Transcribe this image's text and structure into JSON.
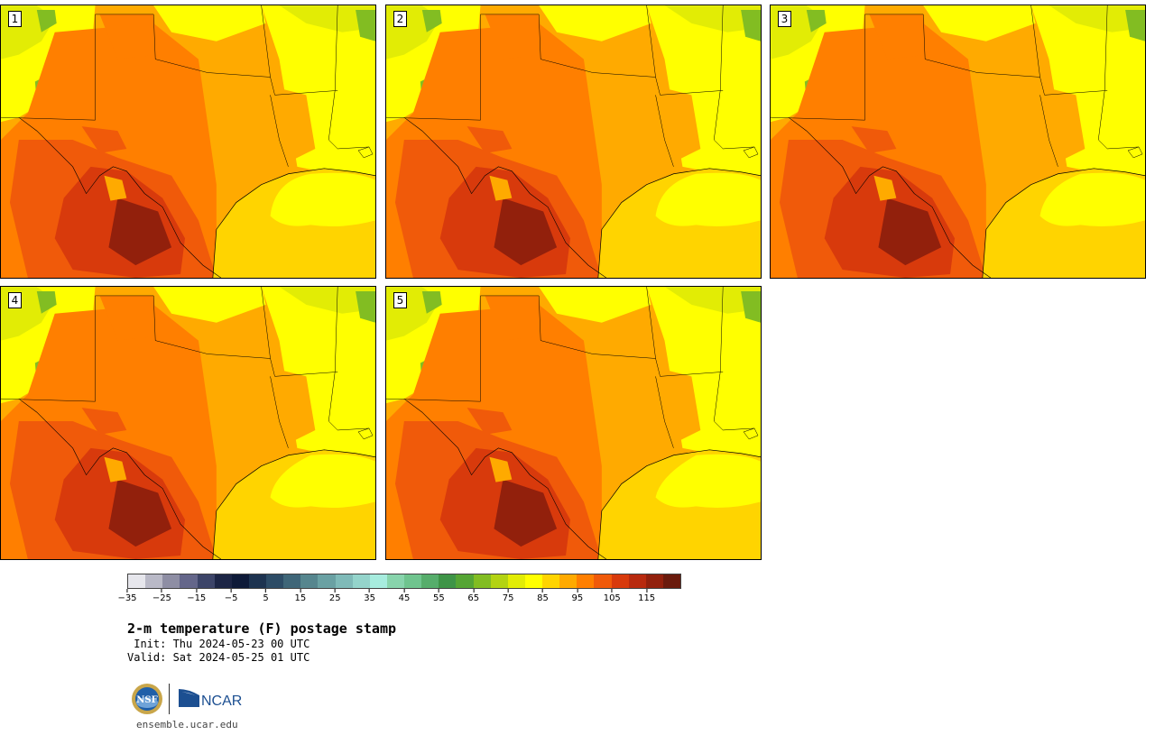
{
  "panels": [
    {
      "id": "p1",
      "label": "1"
    },
    {
      "id": "p2",
      "label": "2"
    },
    {
      "id": "p3",
      "label": "3"
    },
    {
      "id": "p4",
      "label": "4"
    },
    {
      "id": "p5",
      "label": "5"
    }
  ],
  "colorbar": {
    "colors": [
      "#e6e6ec",
      "#b9b9c7",
      "#8e8ea4",
      "#64668a",
      "#3c4468",
      "#1c2545",
      "#0e1a38",
      "#1d3350",
      "#2d4c66",
      "#3f6678",
      "#56868e",
      "#6aa1a3",
      "#7fbab8",
      "#94d4cb",
      "#a7ecde",
      "#88d4ac",
      "#6fc48e",
      "#56ad6b",
      "#3e9447",
      "#55a534",
      "#82bd22",
      "#b3d312",
      "#e2ec05",
      "#ffff00",
      "#ffd400",
      "#ffaa00",
      "#ff7f00",
      "#f05a0a",
      "#d83a0c",
      "#b82a0e",
      "#92200c",
      "#6a1a0c"
    ],
    "ticks": [
      "−35",
      "−25",
      "−15",
      "−5",
      "5",
      "15",
      "25",
      "35",
      "45",
      "55",
      "65",
      "75",
      "85",
      "95",
      "105",
      "115"
    ]
  },
  "title": "2-m temperature (F) postage stamp",
  "init_line": " Init: Thu 2024-05-23 00 UTC",
  "valid_line": "Valid: Sat 2024-05-25 01 UTC",
  "logos": {
    "nsf": "NSF",
    "ncar": "NCAR"
  },
  "url": "ensemble.ucar.edu",
  "map_palette": {
    "gulf": "#ffd400",
    "hot_dark": "#92200c",
    "hot": "#d83a0c",
    "warm_dark": "#f05a0a",
    "warm": "#ff7f00",
    "mild": "#ffaa00",
    "cool": "#ffff00",
    "cooler": "#e2ec05",
    "green": "#82bd22",
    "deep_green": "#3e9447"
  }
}
